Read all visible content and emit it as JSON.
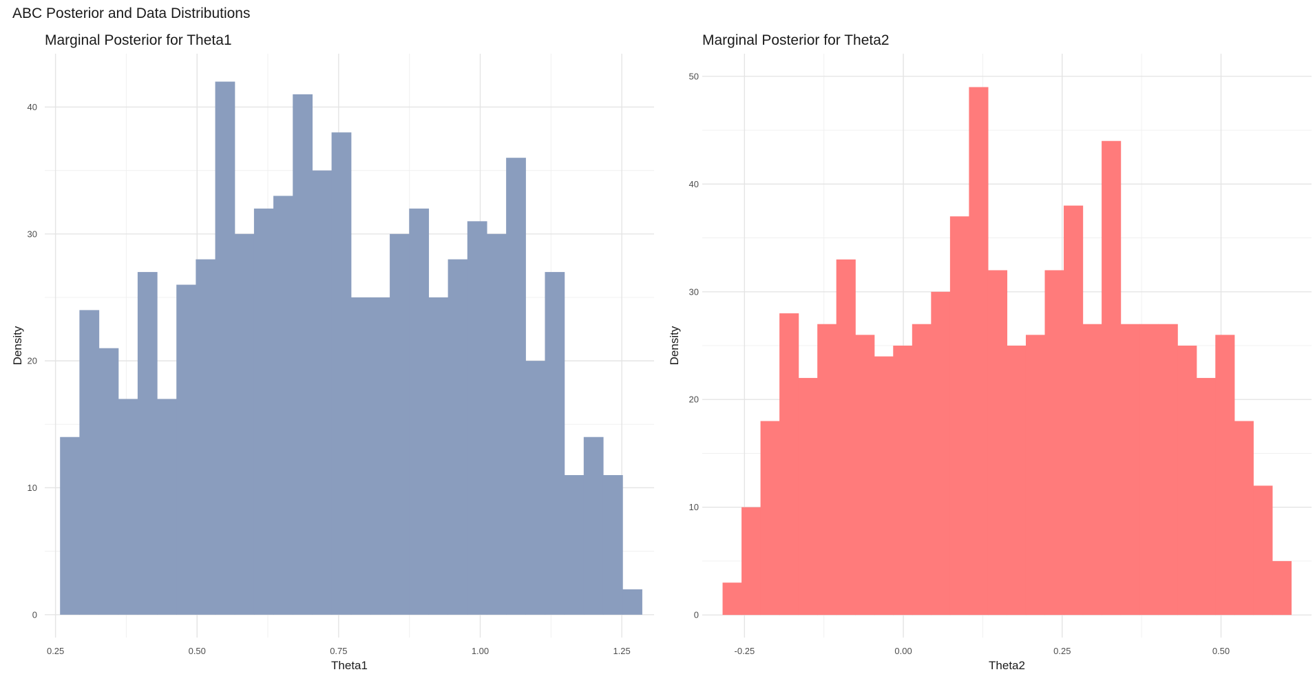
{
  "page_title": "ABC Posterior and Data Distributions",
  "chart_data": [
    {
      "type": "bar",
      "subtype": "histogram",
      "title": "Marginal Posterior for Theta1",
      "xlabel": "Theta1",
      "ylabel": "Density",
      "color": "#8a9dbe",
      "xlim": [
        0.231,
        1.307
      ],
      "ylim": [
        -1.8,
        44.2
      ],
      "x_breaks": [
        0.25,
        0.5,
        0.75,
        1.0,
        1.25
      ],
      "x_tick_labels": [
        "0.25",
        "0.50",
        "0.75",
        "1.00",
        "1.25"
      ],
      "y_breaks": [
        0,
        10,
        20,
        30,
        40
      ],
      "y_tick_labels": [
        "0",
        "10",
        "20",
        "30",
        "40"
      ],
      "bin_start": 0.258,
      "bin_width": 0.03425,
      "values": [
        14,
        24,
        21,
        17,
        27,
        17,
        26,
        28,
        42,
        30,
        32,
        33,
        41,
        35,
        38,
        25,
        25,
        30,
        32,
        25,
        28,
        31,
        30,
        36,
        20,
        27,
        11,
        14,
        11,
        2
      ]
    },
    {
      "type": "bar",
      "subtype": "histogram",
      "title": "Marginal Posterior for Theta2",
      "xlabel": "Theta2",
      "ylabel": "Density",
      "color": "#ff7b7b",
      "xlim": [
        -0.3165,
        0.6425
      ],
      "ylim": [
        -2.1,
        52.1
      ],
      "x_breaks": [
        -0.25,
        0.0,
        0.25,
        0.5
      ],
      "x_tick_labels": [
        "-0.25",
        "0.00",
        "0.25",
        "0.50"
      ],
      "y_breaks": [
        0,
        10,
        20,
        30,
        40,
        50
      ],
      "y_tick_labels": [
        "0",
        "10",
        "20",
        "30",
        "40",
        "50"
      ],
      "bin_start": -0.2845,
      "bin_width": 0.02983,
      "values": [
        3,
        10,
        18,
        28,
        22,
        27,
        33,
        26,
        24,
        25,
        27,
        30,
        37,
        49,
        32,
        25,
        26,
        32,
        38,
        27,
        44,
        27,
        27,
        27,
        25,
        22,
        26,
        18,
        12,
        5
      ]
    }
  ]
}
